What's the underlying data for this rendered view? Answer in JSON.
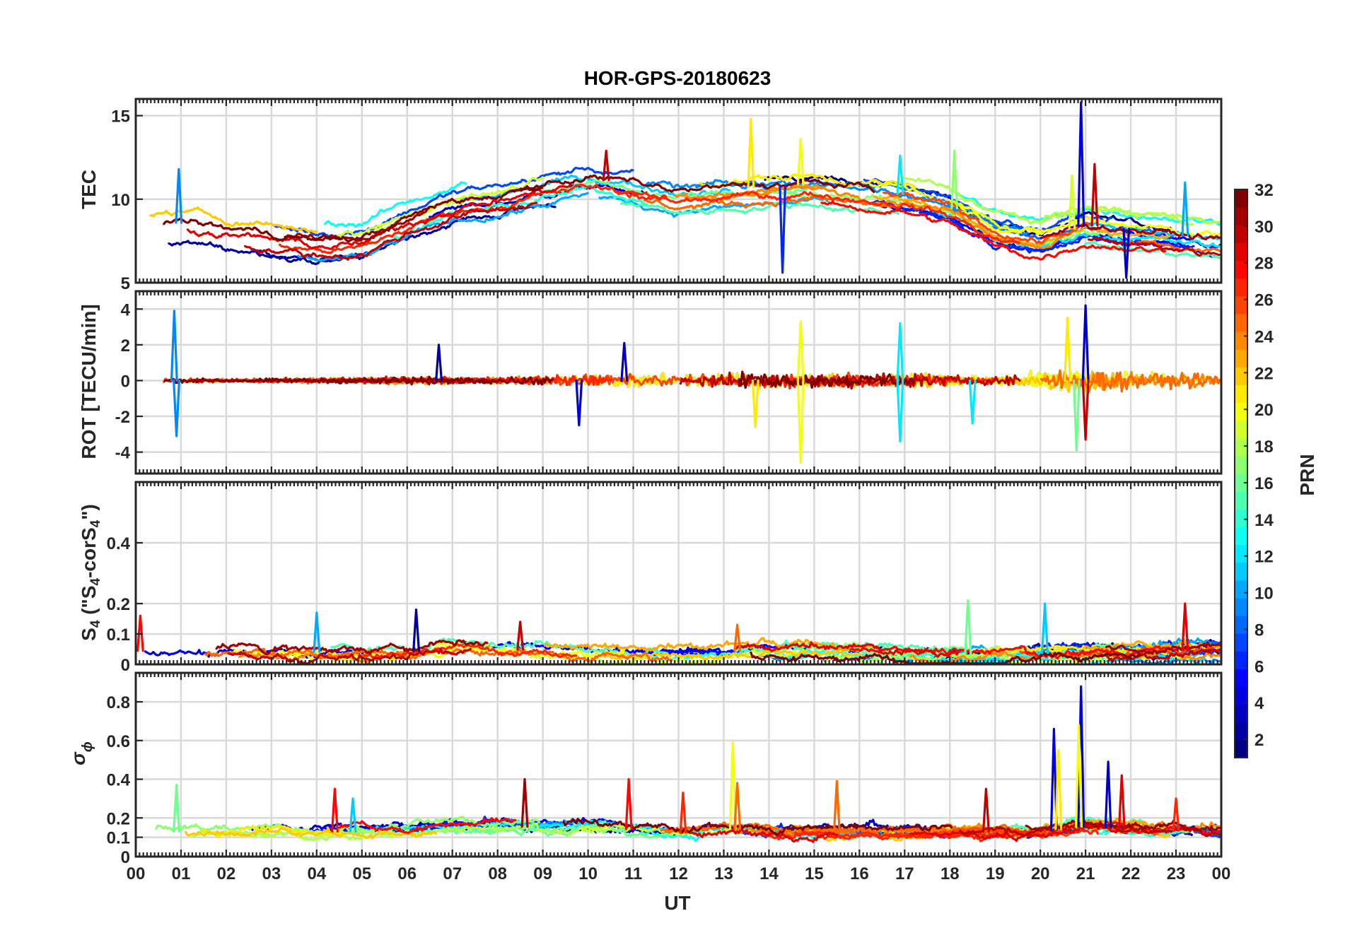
{
  "chart_data": [
    {
      "type": "line",
      "title": "HOR-GPS-20180623",
      "ylabel": "TEC",
      "ylim": [
        5,
        16
      ],
      "yticks": [
        5,
        10,
        15
      ],
      "baseline": [
        [
          0,
          8.4
        ],
        [
          1,
          8.6
        ],
        [
          2,
          8.2
        ],
        [
          3,
          7.9
        ],
        [
          4,
          7.5
        ],
        [
          5,
          7.6
        ],
        [
          6,
          8.8
        ],
        [
          7,
          9.8
        ],
        [
          8,
          10.2
        ],
        [
          9,
          10.8
        ],
        [
          10,
          11.3
        ],
        [
          11,
          10.9
        ],
        [
          12,
          10.4
        ],
        [
          13,
          10.6
        ],
        [
          14,
          10.8
        ],
        [
          15,
          10.9
        ],
        [
          16,
          10.6
        ],
        [
          17,
          10.3
        ],
        [
          18,
          9.6
        ],
        [
          19,
          8.2
        ],
        [
          20,
          7.6
        ],
        [
          21,
          8.5
        ],
        [
          22,
          8.2
        ],
        [
          23,
          7.9
        ],
        [
          24,
          7.6
        ]
      ],
      "spread": 1.2,
      "noise": 0.35,
      "spikes": [
        [
          0.95,
          11.8,
          9
        ],
        [
          10.4,
          12.9,
          30
        ],
        [
          13.6,
          14.8,
          21
        ],
        [
          14.7,
          13.6,
          20
        ],
        [
          16.9,
          12.6,
          12
        ],
        [
          18.1,
          12.9,
          17
        ],
        [
          20.9,
          15.8,
          4
        ],
        [
          21.2,
          12.1,
          30
        ],
        [
          20.7,
          11.4,
          19
        ],
        [
          23.2,
          11.0,
          10
        ],
        [
          14.3,
          5.6,
          6
        ],
        [
          21.9,
          5.3,
          3
        ]
      ]
    },
    {
      "type": "line",
      "ylabel": "ROT [TECU/min]",
      "ylim": [
        -5.2,
        5
      ],
      "yticks": [
        -4,
        -2,
        0,
        2,
        4
      ],
      "baseline": [
        [
          0,
          0
        ],
        [
          24,
          0
        ]
      ],
      "spread": 0.18,
      "noise": 0.35,
      "activity": [
        [
          0,
          0.5
        ],
        [
          2,
          0.4
        ],
        [
          4,
          0.5
        ],
        [
          6,
          0.8
        ],
        [
          8,
          0.6
        ],
        [
          10,
          1.3
        ],
        [
          11,
          1.4
        ],
        [
          13,
          1.6
        ],
        [
          15,
          1.4
        ],
        [
          17,
          1.6
        ],
        [
          19,
          0.8
        ],
        [
          20.5,
          2.6
        ],
        [
          21,
          2.8
        ],
        [
          22,
          1.8
        ],
        [
          24,
          1.4
        ]
      ],
      "spikes": [
        [
          0.85,
          3.9,
          9
        ],
        [
          0.9,
          -3.1,
          9
        ],
        [
          6.7,
          2.0,
          2
        ],
        [
          9.8,
          -2.5,
          4
        ],
        [
          10.8,
          2.1,
          3
        ],
        [
          13.7,
          -2.6,
          21
        ],
        [
          14.7,
          -4.6,
          20
        ],
        [
          14.7,
          3.3,
          20
        ],
        [
          16.9,
          -3.4,
          12
        ],
        [
          16.9,
          3.2,
          12
        ],
        [
          20.6,
          3.5,
          21
        ],
        [
          20.8,
          -3.9,
          16
        ],
        [
          21.0,
          4.2,
          3
        ],
        [
          21.0,
          -3.3,
          30
        ],
        [
          18.5,
          -2.4,
          12
        ]
      ]
    },
    {
      "type": "line",
      "ylabel": "S",
      "ylim": [
        0,
        0.6
      ],
      "yticks": [
        0,
        0.1,
        0.2,
        0.4
      ],
      "baseline": [
        [
          0,
          0.045
        ],
        [
          6,
          0.04
        ],
        [
          7,
          0.06
        ],
        [
          9,
          0.045
        ],
        [
          12,
          0.035
        ],
        [
          14,
          0.05
        ],
        [
          18,
          0.035
        ],
        [
          22,
          0.04
        ],
        [
          24,
          0.05
        ]
      ],
      "spread": 0.025,
      "noise": 0.02,
      "spikes": [
        [
          0.1,
          0.16,
          28
        ],
        [
          4.0,
          0.17,
          10
        ],
        [
          6.2,
          0.18,
          2
        ],
        [
          8.5,
          0.14,
          30
        ],
        [
          18.4,
          0.21,
          16
        ],
        [
          20.1,
          0.2,
          11
        ],
        [
          23.2,
          0.2,
          29
        ],
        [
          13.3,
          0.13,
          25
        ]
      ]
    },
    {
      "type": "line",
      "ylabel": "σ",
      "ylim": [
        0,
        0.95
      ],
      "yticks": [
        0,
        0.1,
        0.2,
        0.4,
        0.6,
        0.8
      ],
      "baseline": [
        [
          0,
          0.13
        ],
        [
          6,
          0.13
        ],
        [
          7,
          0.15
        ],
        [
          10,
          0.16
        ],
        [
          12,
          0.12
        ],
        [
          13,
          0.15
        ],
        [
          14,
          0.13
        ],
        [
          20,
          0.13
        ],
        [
          21,
          0.16
        ],
        [
          22,
          0.14
        ],
        [
          24,
          0.13
        ]
      ],
      "spread": 0.02,
      "noise": 0.03,
      "spikes": [
        [
          0.9,
          0.37,
          16
        ],
        [
          4.4,
          0.35,
          28
        ],
        [
          4.8,
          0.3,
          11
        ],
        [
          8.6,
          0.4,
          31
        ],
        [
          10.9,
          0.4,
          28
        ],
        [
          12.1,
          0.33,
          27
        ],
        [
          13.2,
          0.59,
          20
        ],
        [
          13.3,
          0.38,
          25
        ],
        [
          15.5,
          0.39,
          25
        ],
        [
          18.8,
          0.35,
          30
        ],
        [
          20.3,
          0.66,
          4
        ],
        [
          20.4,
          0.55,
          21
        ],
        [
          20.9,
          0.88,
          4
        ],
        [
          20.85,
          0.68,
          20
        ],
        [
          21.5,
          0.49,
          3
        ],
        [
          21.8,
          0.42,
          29
        ],
        [
          23.0,
          0.3,
          27
        ]
      ]
    }
  ],
  "xaxis": {
    "xlabel": "UT",
    "xlim": [
      0,
      24
    ],
    "ticks": [
      "00",
      "01",
      "02",
      "03",
      "04",
      "05",
      "06",
      "07",
      "08",
      "09",
      "10",
      "11",
      "12",
      "13",
      "14",
      "15",
      "16",
      "17",
      "18",
      "19",
      "20",
      "21",
      "22",
      "23",
      "00"
    ]
  },
  "colorbar": {
    "label": "PRN",
    "range": [
      1,
      32
    ],
    "ticks": [
      2,
      4,
      6,
      8,
      10,
      12,
      14,
      16,
      18,
      20,
      22,
      24,
      26,
      28,
      30,
      32
    ],
    "levels": 32
  }
}
